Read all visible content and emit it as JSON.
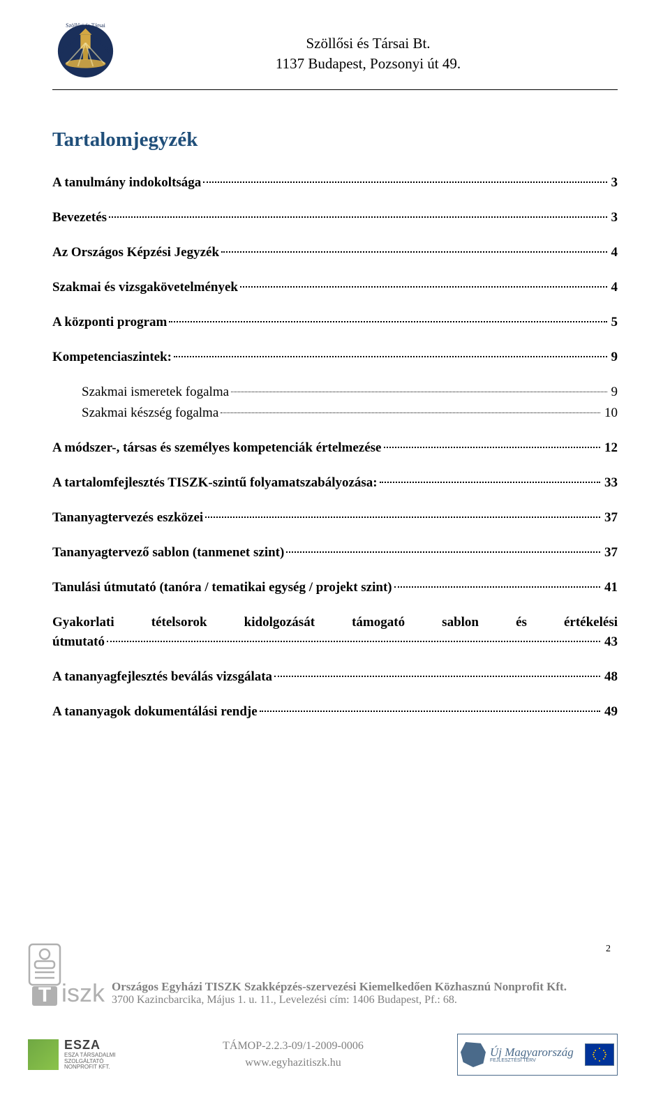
{
  "header": {
    "company_name": "Szöllősi és Társai Bt.",
    "address": "1137 Budapest, Pozsonyi út 49."
  },
  "toc": {
    "title": "Tartalomjegyzék",
    "entries": [
      {
        "label": "A tanulmány indokoltsága",
        "page": "3",
        "type": "main"
      },
      {
        "label": "Bevezetés",
        "page": "3",
        "type": "main"
      },
      {
        "label": "Az Országos Képzési Jegyzék",
        "page": "4",
        "type": "main"
      },
      {
        "label": "Szakmai és vizsgakövetelmények",
        "page": "4",
        "type": "main"
      },
      {
        "label": "A központi program",
        "page": "5",
        "type": "main"
      },
      {
        "label": "Kompetenciaszintek:",
        "page": "9",
        "type": "main"
      },
      {
        "label": "Szakmai ismeretek fogalma",
        "page": "9",
        "type": "sub"
      },
      {
        "label": "Szakmai készség fogalma",
        "page": "10",
        "type": "sub-last"
      },
      {
        "label": "A módszer-, társas és személyes kompetenciák értelmezése",
        "page": "12",
        "type": "main"
      },
      {
        "label": "A tartalomfejlesztés TISZK-szintű folyamatszabályozása:",
        "page": "33",
        "type": "main"
      },
      {
        "label": "Tananyagtervezés eszközei",
        "page": "37",
        "type": "main"
      },
      {
        "label": "Tananyagtervező sablon (tanmenet szint)",
        "page": "37",
        "type": "main"
      },
      {
        "label": "Tanulási útmutató (tanóra / tematikai egység / projekt szint)",
        "page": "41",
        "type": "main"
      },
      {
        "label_line1": "Gyakorlati tételsorok kidolgozását támogató sablon és értékelési",
        "label_line2": "útmutató",
        "page": "43",
        "type": "multi"
      },
      {
        "label": "A tananyagfejlesztés beválás vizsgálata",
        "page": "48",
        "type": "main"
      },
      {
        "label": "A tananyagok dokumentálási rendje",
        "page": "49",
        "type": "main"
      }
    ]
  },
  "page_number": "2",
  "footer": {
    "org_name": "Országos Egyházi TISZK Szakképzés-szervezési Kiemelkedően Közhasznú Nonprofit Kft.",
    "org_address": "3700 Kazincbarcika, Május 1. u. 11., Levelezési cím: 1406 Budapest, Pf.: 68.",
    "project_code": "TÁMOP-2.2.3-09/1-2009-0006",
    "website": "www.egyhazitiszk.hu",
    "esza_label": "ESZA",
    "esza_sub": "ESZA TÁRSADALMI SZOLGÁLTATÓ\nNONPROFIT KFT.",
    "uj_mo_text": "Új Magyarország",
    "uj_mo_sub": "FEJLESZTÉSI TERV"
  },
  "colors": {
    "title_color": "#1f4e79",
    "text_color": "#000000",
    "footer_gray": "#808080",
    "logo_navy": "#1a2f5a",
    "logo_gold": "#d4a843",
    "esza_green": "#6fa843",
    "umo_blue": "#4a6a8a",
    "eu_blue": "#003399",
    "eu_gold": "#ffcc00"
  }
}
